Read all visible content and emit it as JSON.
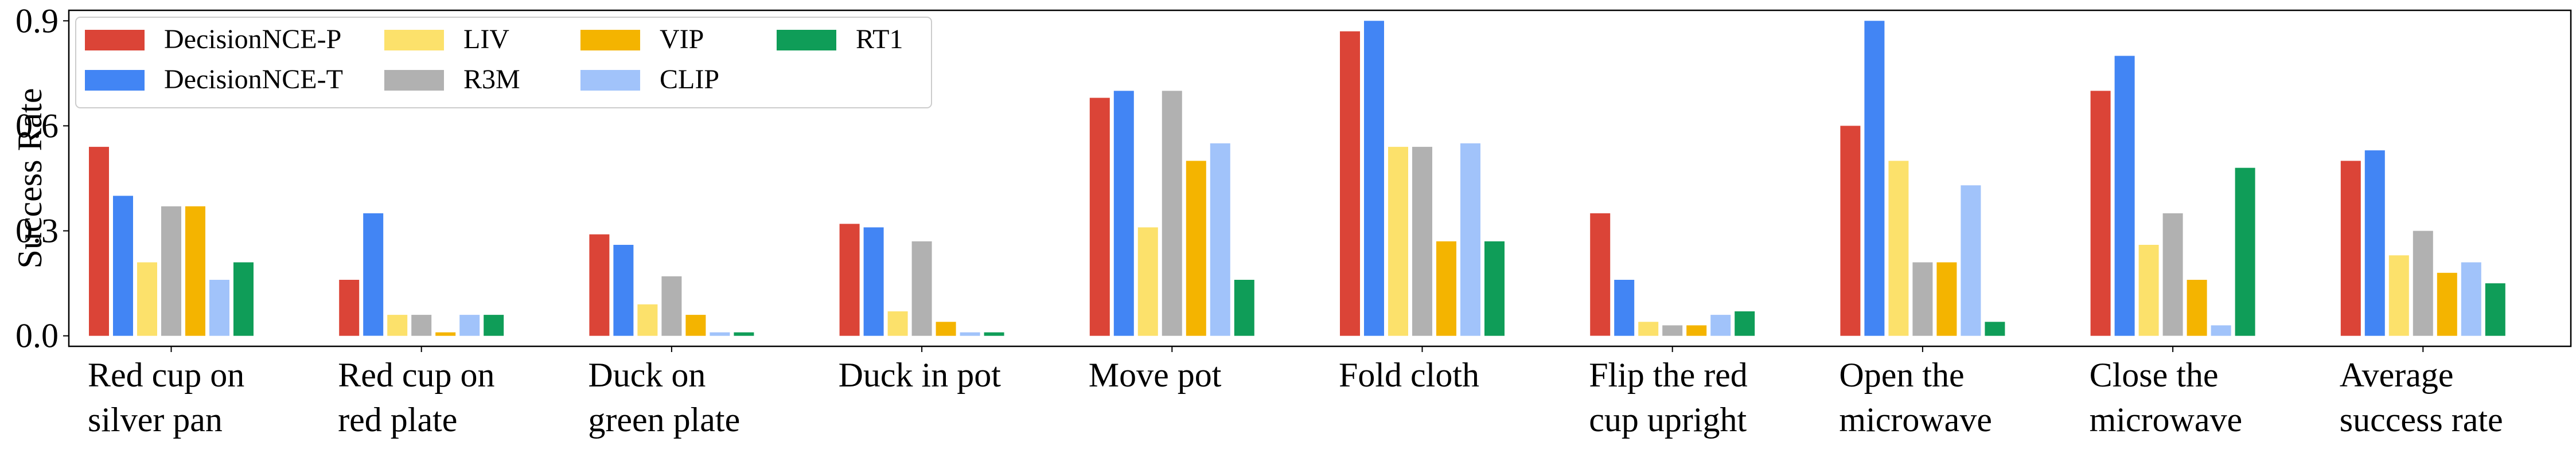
{
  "chart_data": {
    "type": "bar",
    "ylabel": "Success Rate",
    "ylim": [
      -0.03,
      0.93
    ],
    "yticks": [
      {
        "value": 0.0,
        "label": "0.0"
      },
      {
        "value": 0.3,
        "label": "0.3"
      },
      {
        "value": 0.6,
        "label": "0.6"
      },
      {
        "value": 0.9,
        "label": "0.9"
      }
    ],
    "legend_position": "top-left",
    "legend_columns": 4,
    "grid": false,
    "categories": [
      [
        "Red cup on",
        "silver pan"
      ],
      [
        "Red cup on",
        "red plate"
      ],
      [
        "Duck on",
        "green plate"
      ],
      [
        "Duck in pot"
      ],
      [
        "Move pot"
      ],
      [
        "Fold cloth"
      ],
      [
        "Flip the red",
        "cup upright"
      ],
      [
        "Open the",
        "microwave"
      ],
      [
        "Close the",
        "microwave"
      ],
      [
        "Average",
        "success rate"
      ]
    ],
    "series": [
      {
        "name": "DecisionNCE-P",
        "color": "#db4437",
        "values": [
          0.54,
          0.16,
          0.29,
          0.32,
          0.68,
          0.87,
          0.35,
          0.6,
          0.7,
          0.5
        ]
      },
      {
        "name": "DecisionNCE-T",
        "color": "#4285f4",
        "values": [
          0.4,
          0.35,
          0.26,
          0.31,
          0.7,
          0.9,
          0.16,
          0.9,
          0.8,
          0.53
        ]
      },
      {
        "name": "LIV",
        "color": "#fce16b",
        "values": [
          0.21,
          0.06,
          0.09,
          0.07,
          0.31,
          0.54,
          0.04,
          0.5,
          0.26,
          0.23
        ]
      },
      {
        "name": "R3M",
        "color": "#b1b1b1",
        "values": [
          0.37,
          0.06,
          0.17,
          0.27,
          0.7,
          0.54,
          0.03,
          0.21,
          0.35,
          0.3
        ]
      },
      {
        "name": "VIP",
        "color": "#f4b400",
        "values": [
          0.37,
          0.01,
          0.06,
          0.04,
          0.5,
          0.27,
          0.03,
          0.21,
          0.16,
          0.18
        ]
      },
      {
        "name": "CLIP",
        "color": "#a1c3fa",
        "values": [
          0.16,
          0.06,
          0.01,
          0.01,
          0.55,
          0.55,
          0.06,
          0.43,
          0.03,
          0.21
        ]
      },
      {
        "name": "RT1",
        "color": "#0f9d58",
        "values": [
          0.21,
          0.06,
          0.01,
          0.01,
          0.16,
          0.27,
          0.07,
          0.04,
          0.48,
          0.15
        ]
      }
    ]
  }
}
